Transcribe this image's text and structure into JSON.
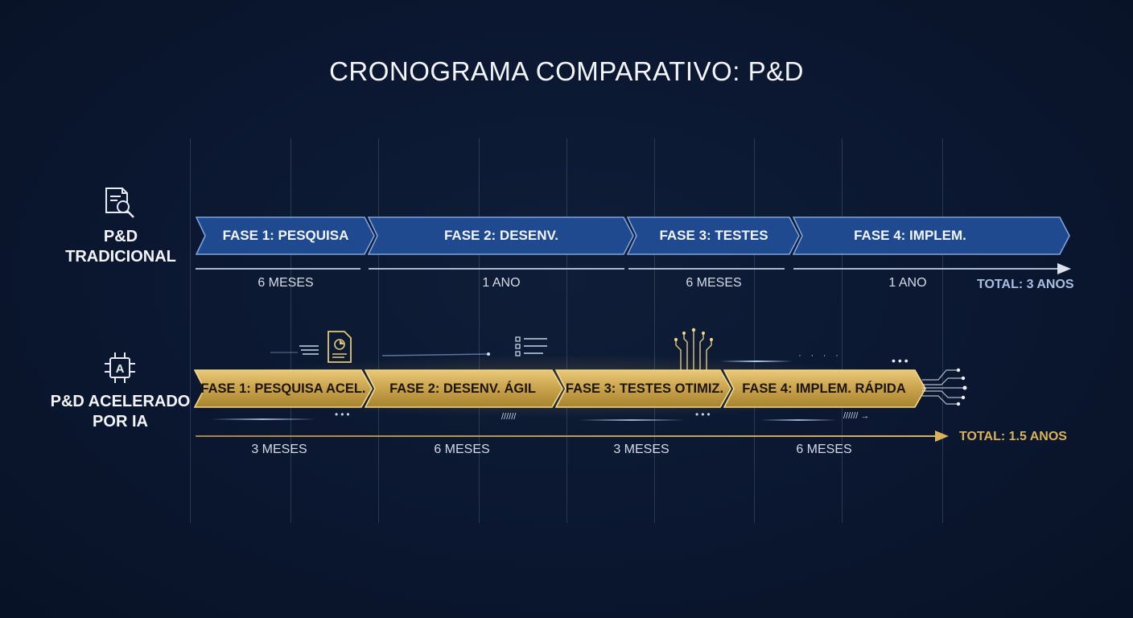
{
  "title": "CRONOGRAMA COMPARATIVO: P&D",
  "colors": {
    "background": "#0b1730",
    "blue_fill": "#1f4a8f",
    "blue_stroke": "#7fa2dc",
    "gold_fill": "#c9a24c",
    "gold_stroke": "#f3d98b",
    "gold_accent": "#d8b35c"
  },
  "traditional": {
    "icon": "document-search-icon",
    "label_line1": "P&D",
    "label_line2": "TRADICIONAL",
    "phases": [
      {
        "label": "FASE 1: PESQUISA",
        "duration": "6 MESES"
      },
      {
        "label": "FASE 2: DESENV.",
        "duration": "1 ANO"
      },
      {
        "label": "FASE 3: TESTES",
        "duration": "6 MESES"
      },
      {
        "label": "FASE 4: IMPLEM.",
        "duration": "1 ANO"
      }
    ],
    "total": "TOTAL: 3 ANOS"
  },
  "ai": {
    "icon": "ai-chip-icon",
    "chip_letter": "A",
    "label_line1": "P&D ACELERADO",
    "label_line2": "POR IA",
    "phases": [
      {
        "label": "FASE 1: PESQUISA ACEL.",
        "duration": "3 MESES"
      },
      {
        "label": "FASE 2: DESENV. ÁGIL",
        "duration": "6 MESES"
      },
      {
        "label": "FASE 3: TESTES OTIMIZ.",
        "duration": "3 MESES"
      },
      {
        "label": "FASE 4: IMPLEM. RÁPIDA",
        "duration": "6 MESES"
      }
    ],
    "total": "TOTAL: 1.5 ANOS"
  }
}
